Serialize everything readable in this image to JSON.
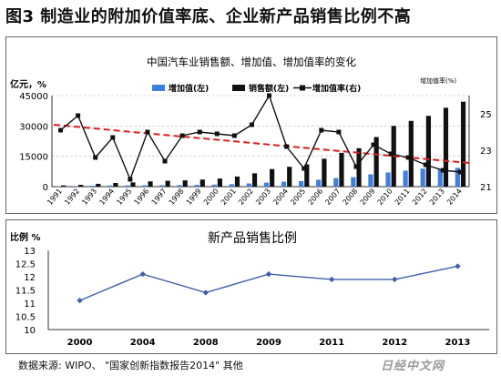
{
  "figure_title": "图3  制造业的附加价值率底、企业新产品销售比例不高",
  "source_note": "数据来源: WIPO、  \"国家创新指数报告2014\" 其他",
  "logo_text": "日经中文网",
  "colors": {
    "blue": "#3f7fe0",
    "black": "#111111",
    "trend": "#e01b1b"
  },
  "chart_data": [
    {
      "type": "bar",
      "title": "中国汽车业销售额、增加值、增加值率的变化",
      "ylabel_left": "亿元，%",
      "ylabel_right": "增加值率(%)",
      "categories": [
        "1991",
        "1992",
        "1993",
        "1994",
        "1995",
        "1996",
        "1997",
        "1998",
        "1999",
        "2000",
        "2001",
        "2002",
        "2003",
        "2004",
        "2005",
        "2006",
        "2007",
        "2008",
        "2009",
        "2010",
        "2011",
        "2012",
        "2013",
        "2014"
      ],
      "left_ticks": [
        "45000",
        "30000",
        "15000",
        "0"
      ],
      "right_ticks": [
        "25",
        "23",
        "21"
      ],
      "ylim_left": [
        0,
        45000
      ],
      "ylim_right": [
        21,
        26
      ],
      "legend_position": "top-right",
      "series": [
        {
          "name": "增加值(左)",
          "kind": "bar",
          "color": "#3f7fe0",
          "values": [
            150,
            280,
            450,
            550,
            600,
            650,
            700,
            750,
            850,
            1000,
            1200,
            1550,
            2000,
            2450,
            2700,
            3400,
            4200,
            4700,
            6100,
            7000,
            7900,
            8900,
            8600,
            9300
          ]
        },
        {
          "name": "销售额(左)",
          "kind": "bar",
          "color": "#111111",
          "values": [
            600,
            900,
            1400,
            1800,
            2100,
            2600,
            2900,
            3100,
            3500,
            4000,
            5000,
            6600,
            8700,
            9800,
            11000,
            13800,
            16700,
            19000,
            24500,
            30000,
            32500,
            35000,
            39000,
            42000
          ]
        },
        {
          "name": "增加值率(右)",
          "kind": "line",
          "color": "#111111",
          "values": [
            24.1,
            24.9,
            22.6,
            23.7,
            21.4,
            24.0,
            22.4,
            23.8,
            24.0,
            23.9,
            23.8,
            24.4,
            26.0,
            23.2,
            22.0,
            24.1,
            24.0,
            22.1,
            23.3,
            22.8,
            22.6,
            22.2,
            21.9,
            21.8
          ]
        }
      ],
      "trend": {
        "color": "#e01b1b",
        "from": 24.4,
        "to": 22.3
      }
    },
    {
      "type": "line",
      "title": "新产品销售比例",
      "ylabel": "比例 %",
      "categories": [
        "2000",
        "2004",
        "2008",
        "2009",
        "2011",
        "2012",
        "2013"
      ],
      "y_ticks": [
        "13",
        "12.5",
        "12",
        "11.5",
        "11",
        "10.5",
        "10"
      ],
      "ylim": [
        10,
        13
      ],
      "series": [
        {
          "color": "#3f5fa8",
          "values": [
            11.1,
            12.1,
            11.4,
            12.1,
            11.9,
            11.9,
            12.4
          ]
        }
      ]
    }
  ]
}
